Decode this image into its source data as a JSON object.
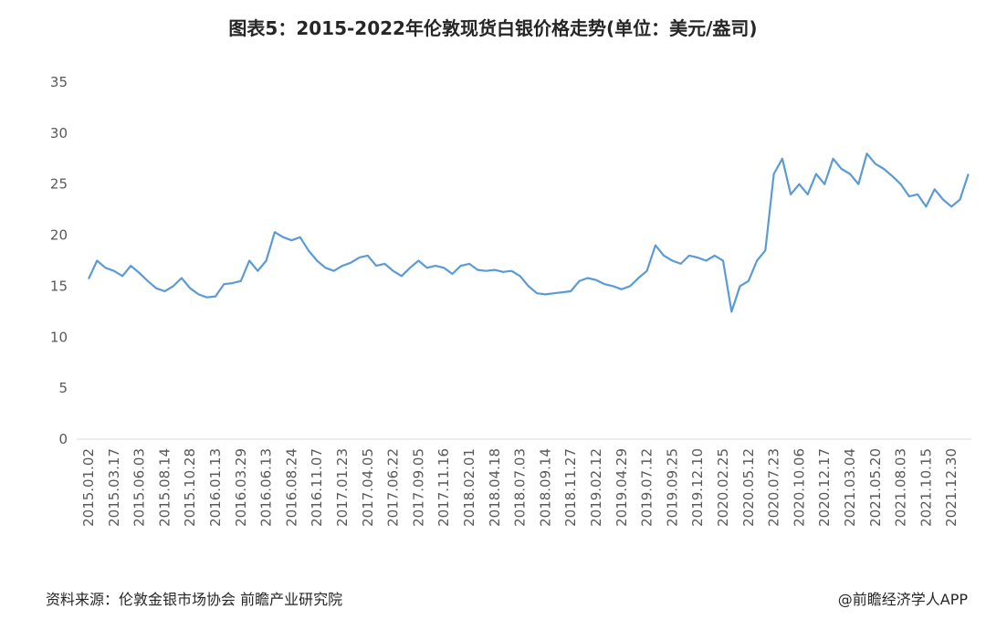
{
  "chart_data": {
    "type": "line",
    "title": "图表5：2015-2022年伦敦现货白银价格走势(单位：美元/盎司)",
    "categories": [
      "2015.01.02",
      null,
      null,
      "2015.03.17",
      null,
      null,
      "2015.06.03",
      null,
      null,
      "2015.08.14",
      null,
      null,
      "2015.10.28",
      null,
      null,
      "2016.01.13",
      null,
      null,
      "2016.03.29",
      null,
      null,
      "2016.06.13",
      null,
      null,
      "2016.08.24",
      null,
      null,
      "2016.11.07",
      null,
      null,
      "2017.01.23",
      null,
      null,
      "2017.04.05",
      null,
      null,
      "2017.06.22",
      null,
      null,
      "2017.09.05",
      null,
      null,
      "2017.11.16",
      null,
      null,
      "2018.02.01",
      null,
      null,
      "2018.04.18",
      null,
      null,
      "2018.07.03",
      null,
      null,
      "2018.09.14",
      null,
      null,
      "2018.11.27",
      null,
      null,
      "2019.02.12",
      null,
      null,
      "2019.04.29",
      null,
      null,
      "2019.07.12",
      null,
      null,
      "2019.09.25",
      null,
      null,
      "2019.12.10",
      null,
      null,
      "2020.02.25",
      null,
      null,
      "2020.05.12",
      null,
      null,
      "2020.07.23",
      null,
      null,
      "2020.10.06",
      null,
      null,
      "2020.12.17",
      null,
      null,
      "2021.03.04",
      null,
      null,
      "2021.05.20",
      null,
      null,
      "2021.08.03",
      null,
      null,
      "2021.10.15",
      null,
      null,
      "2021.12.30",
      null,
      null
    ],
    "values": [
      15.7,
      17.5,
      16.8,
      16.5,
      16.0,
      17.0,
      16.3,
      15.5,
      14.8,
      14.5,
      15.0,
      15.8,
      14.8,
      14.2,
      13.9,
      14.0,
      15.2,
      15.3,
      15.5,
      17.5,
      16.5,
      17.5,
      20.3,
      19.8,
      19.5,
      19.8,
      18.5,
      17.5,
      16.8,
      16.5,
      17.0,
      17.3,
      17.8,
      18.0,
      17.0,
      17.2,
      16.5,
      16.0,
      16.8,
      17.5,
      16.8,
      17.0,
      16.8,
      16.2,
      17.0,
      17.2,
      16.6,
      16.5,
      16.6,
      16.4,
      16.5,
      16.0,
      15.0,
      14.3,
      14.2,
      14.3,
      14.4,
      14.5,
      15.5,
      15.8,
      15.6,
      15.2,
      15.0,
      14.7,
      15.0,
      15.8,
      16.5,
      19.0,
      18.0,
      17.5,
      17.2,
      18.0,
      17.8,
      17.5,
      18.0,
      17.5,
      12.5,
      15.0,
      15.5,
      17.5,
      18.5,
      26.0,
      27.5,
      24.0,
      25.0,
      24.0,
      26.0,
      25.0,
      27.5,
      26.5,
      26.0,
      25.0,
      28.0,
      27.0,
      26.5,
      25.8,
      25.0,
      23.8,
      24.0,
      22.8,
      24.5,
      23.5,
      22.8,
      23.5,
      26.0
    ],
    "color": "#5b9bd5",
    "ylim": [
      0,
      35
    ],
    "yticks": [
      0,
      5,
      10,
      15,
      20,
      25,
      30,
      35
    ],
    "source": "资料来源：伦敦金银市场协会 前瞻产业研究院",
    "credit": "@前瞻经济学人APP"
  }
}
